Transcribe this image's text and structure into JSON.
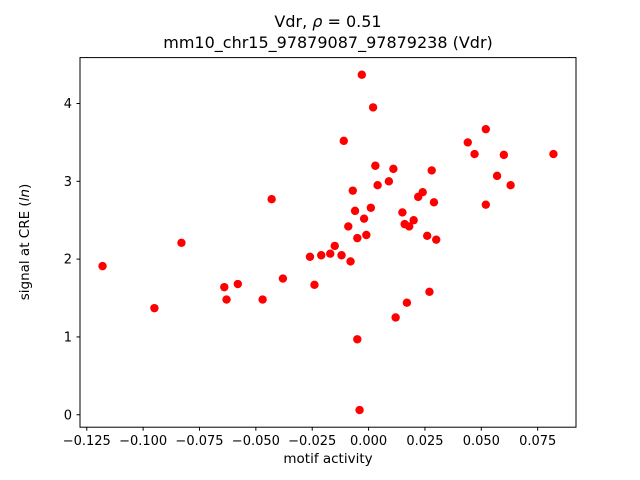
{
  "chart_data": {
    "type": "scatter",
    "title": "Vdr, ρ = 0.51",
    "title_parts": {
      "prefix": "Vdr, ",
      "rho": "ρ",
      "suffix": " = 0.51"
    },
    "subtitle": "mm10_chr15_97879087_97879238 (Vdr)",
    "xlabel": "motif activity",
    "ylabel": "signal at CRE (ln)",
    "ylabel_parts": {
      "prefix": "signal at CRE (",
      "italic": "ln",
      "suffix": ")"
    },
    "marker_color": "#ff0000",
    "axis_color": "#000000",
    "grid": false,
    "legend": "none",
    "xlim": [
      -0.128,
      0.092
    ],
    "ylim": [
      -0.16,
      4.59
    ],
    "xticks": [
      -0.125,
      -0.1,
      -0.075,
      -0.05,
      -0.025,
      0.0,
      0.025,
      0.05,
      0.075
    ],
    "xtick_labels": [
      "−0.125",
      "−0.100",
      "−0.075",
      "−0.050",
      "−0.025",
      "0.000",
      "0.025",
      "0.050",
      "0.075"
    ],
    "yticks": [
      0,
      1,
      2,
      3,
      4
    ],
    "ytick_labels": [
      "0",
      "1",
      "2",
      "3",
      "4"
    ],
    "points": [
      [
        -0.118,
        1.91
      ],
      [
        -0.095,
        1.37
      ],
      [
        -0.083,
        2.21
      ],
      [
        -0.064,
        1.64
      ],
      [
        -0.063,
        1.48
      ],
      [
        -0.058,
        1.68
      ],
      [
        -0.047,
        1.48
      ],
      [
        -0.043,
        2.77
      ],
      [
        -0.038,
        1.75
      ],
      [
        -0.026,
        2.03
      ],
      [
        -0.024,
        1.67
      ],
      [
        -0.021,
        2.05
      ],
      [
        -0.017,
        2.07
      ],
      [
        -0.015,
        2.17
      ],
      [
        -0.012,
        2.05
      ],
      [
        -0.011,
        3.52
      ],
      [
        -0.009,
        2.42
      ],
      [
        -0.008,
        1.97
      ],
      [
        -0.007,
        2.88
      ],
      [
        -0.006,
        2.62
      ],
      [
        -0.005,
        2.27
      ],
      [
        -0.005,
        0.97
      ],
      [
        -0.004,
        0.06
      ],
      [
        -0.003,
        4.37
      ],
      [
        -0.002,
        2.52
      ],
      [
        -0.001,
        2.31
      ],
      [
        0.001,
        2.66
      ],
      [
        0.002,
        3.95
      ],
      [
        0.003,
        3.2
      ],
      [
        0.004,
        2.95
      ],
      [
        0.009,
        3.0
      ],
      [
        0.011,
        3.16
      ],
      [
        0.012,
        1.25
      ],
      [
        0.015,
        2.6
      ],
      [
        0.016,
        2.45
      ],
      [
        0.017,
        1.44
      ],
      [
        0.018,
        2.42
      ],
      [
        0.02,
        2.5
      ],
      [
        0.022,
        2.8
      ],
      [
        0.024,
        2.86
      ],
      [
        0.026,
        2.3
      ],
      [
        0.027,
        1.58
      ],
      [
        0.028,
        3.14
      ],
      [
        0.029,
        2.73
      ],
      [
        0.03,
        2.25
      ],
      [
        0.044,
        3.5
      ],
      [
        0.047,
        3.35
      ],
      [
        0.052,
        3.67
      ],
      [
        0.052,
        2.7
      ],
      [
        0.057,
        3.07
      ],
      [
        0.06,
        3.34
      ],
      [
        0.063,
        2.95
      ],
      [
        0.082,
        3.35
      ]
    ]
  }
}
